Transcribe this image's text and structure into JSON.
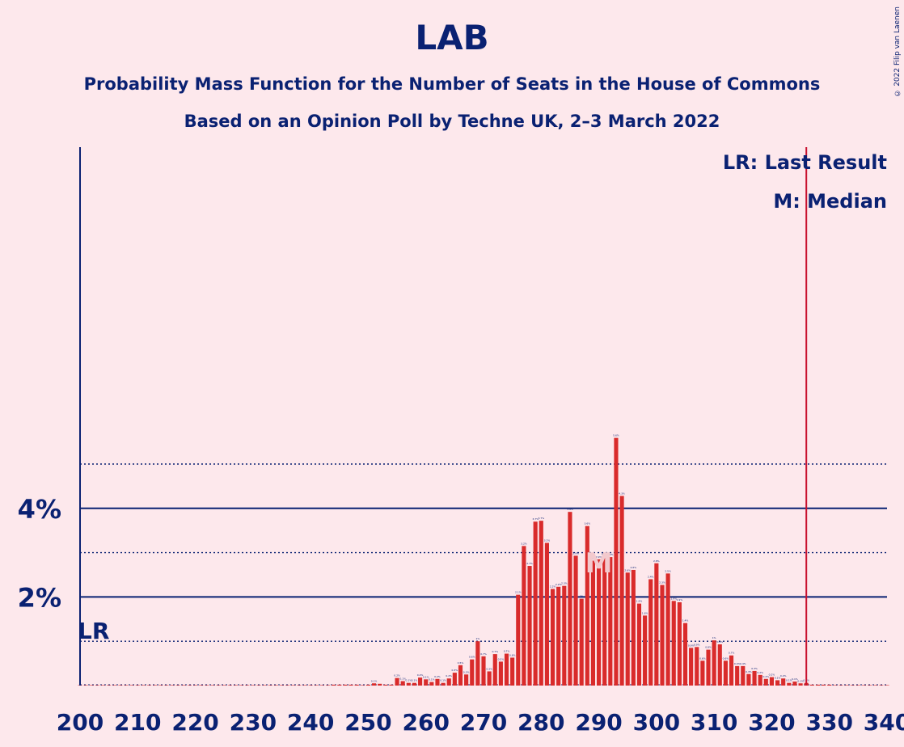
{
  "title": "LAB",
  "subtitle": "Probability Mass Function for the Number of Seats in the House of Commons",
  "subtitle2": "Based on an Opinion Poll by Techne UK, 2–3 March 2022",
  "copyright": "© 2022 Filip van Laenen",
  "legend": {
    "last_result": "LR: Last Result",
    "median": "M: Median"
  },
  "colors": {
    "background": "#fde8ec",
    "bar": "#d92b2b",
    "text": "#0a2172",
    "last_result_line": "#c8102e"
  },
  "chart_data": {
    "type": "bar",
    "title": "LAB",
    "xlabel": "",
    "ylabel": "",
    "xlim": [
      200,
      340
    ],
    "ylim": [
      0,
      6
    ],
    "x_ticks": [
      200,
      210,
      220,
      230,
      240,
      250,
      260,
      270,
      280,
      290,
      300,
      310,
      320,
      330,
      340
    ],
    "y_major_ticks": [
      {
        "value": 2,
        "label": "2%"
      },
      {
        "value": 4,
        "label": "4%"
      }
    ],
    "y_minor_gridlines": [
      1,
      3,
      5
    ],
    "last_result": {
      "seat": 202,
      "label": "LR"
    },
    "last_result_line_seat": 326,
    "median": {
      "seat": 290,
      "label": "M"
    },
    "bars": {
      "seats": [
        200,
        201,
        202,
        203,
        204,
        205,
        206,
        207,
        208,
        209,
        210,
        211,
        212,
        213,
        214,
        215,
        216,
        217,
        218,
        219,
        220,
        221,
        222,
        223,
        224,
        225,
        226,
        227,
        228,
        229,
        230,
        231,
        232,
        233,
        234,
        235,
        236,
        237,
        238,
        239,
        240,
        241,
        242,
        243,
        244,
        245,
        246,
        247,
        248,
        249,
        250,
        251,
        252,
        253,
        254,
        255,
        256,
        257,
        258,
        259,
        260,
        261,
        262,
        263,
        264,
        265,
        266,
        267,
        268,
        269,
        270,
        271,
        272,
        273,
        274,
        275,
        276,
        277,
        278,
        279,
        280,
        281,
        282,
        283,
        284,
        285,
        286,
        287,
        288,
        289,
        290,
        291,
        292,
        293,
        294,
        295,
        296,
        297,
        298,
        299,
        300,
        301,
        302,
        303,
        304,
        305,
        306,
        307,
        308,
        309,
        310,
        311,
        312,
        313,
        314,
        315,
        316,
        317,
        318,
        319,
        320,
        321,
        322,
        323,
        324,
        325,
        326,
        327,
        328,
        329,
        330,
        331,
        332,
        333,
        334,
        335,
        336,
        337,
        338,
        339,
        340
      ],
      "values": [
        0.01,
        0.01,
        0.01,
        0.01,
        0.01,
        0.01,
        0.01,
        0.01,
        0.01,
        0.01,
        0.01,
        0.01,
        0.01,
        0.01,
        0.01,
        0.01,
        0.01,
        0.01,
        0.01,
        0.01,
        0.01,
        0.01,
        0.01,
        0.01,
        0.01,
        0.01,
        0.01,
        0.01,
        0.01,
        0.01,
        0.01,
        0.01,
        0.01,
        0.01,
        0.01,
        0.01,
        0.01,
        0.01,
        0.01,
        0.01,
        0.01,
        0.01,
        0.01,
        0.01,
        0.02,
        0.02,
        0.02,
        0.02,
        0.02,
        0.01,
        0.02,
        0.05,
        0.04,
        0.02,
        0.02,
        0.17,
        0.1,
        0.06,
        0.06,
        0.18,
        0.14,
        0.08,
        0.15,
        0.06,
        0.16,
        0.29,
        0.46,
        0.25,
        0.59,
        1.0,
        0.66,
        0.32,
        0.71,
        0.54,
        0.72,
        0.63,
        2.05,
        3.15,
        2.7,
        3.7,
        3.72,
        3.22,
        2.18,
        2.23,
        2.25,
        3.92,
        2.93,
        1.96,
        3.6,
        2.82,
        2.85,
        2.92,
        2.9,
        5.59,
        4.28,
        2.55,
        2.61,
        1.85,
        1.58,
        2.4,
        2.76,
        2.27,
        2.53,
        1.91,
        1.88,
        1.41,
        0.85,
        0.87,
        0.56,
        0.81,
        1.02,
        0.93,
        0.56,
        0.68,
        0.44,
        0.44,
        0.26,
        0.33,
        0.24,
        0.15,
        0.19,
        0.12,
        0.16,
        0.06,
        0.09,
        0.05,
        0.06,
        0.02,
        0.02,
        0.02,
        0.02,
        0.01,
        0.01,
        0.01,
        0.01,
        0.01,
        0.01,
        0.01,
        0.01,
        0.01,
        0.01
      ]
    }
  }
}
